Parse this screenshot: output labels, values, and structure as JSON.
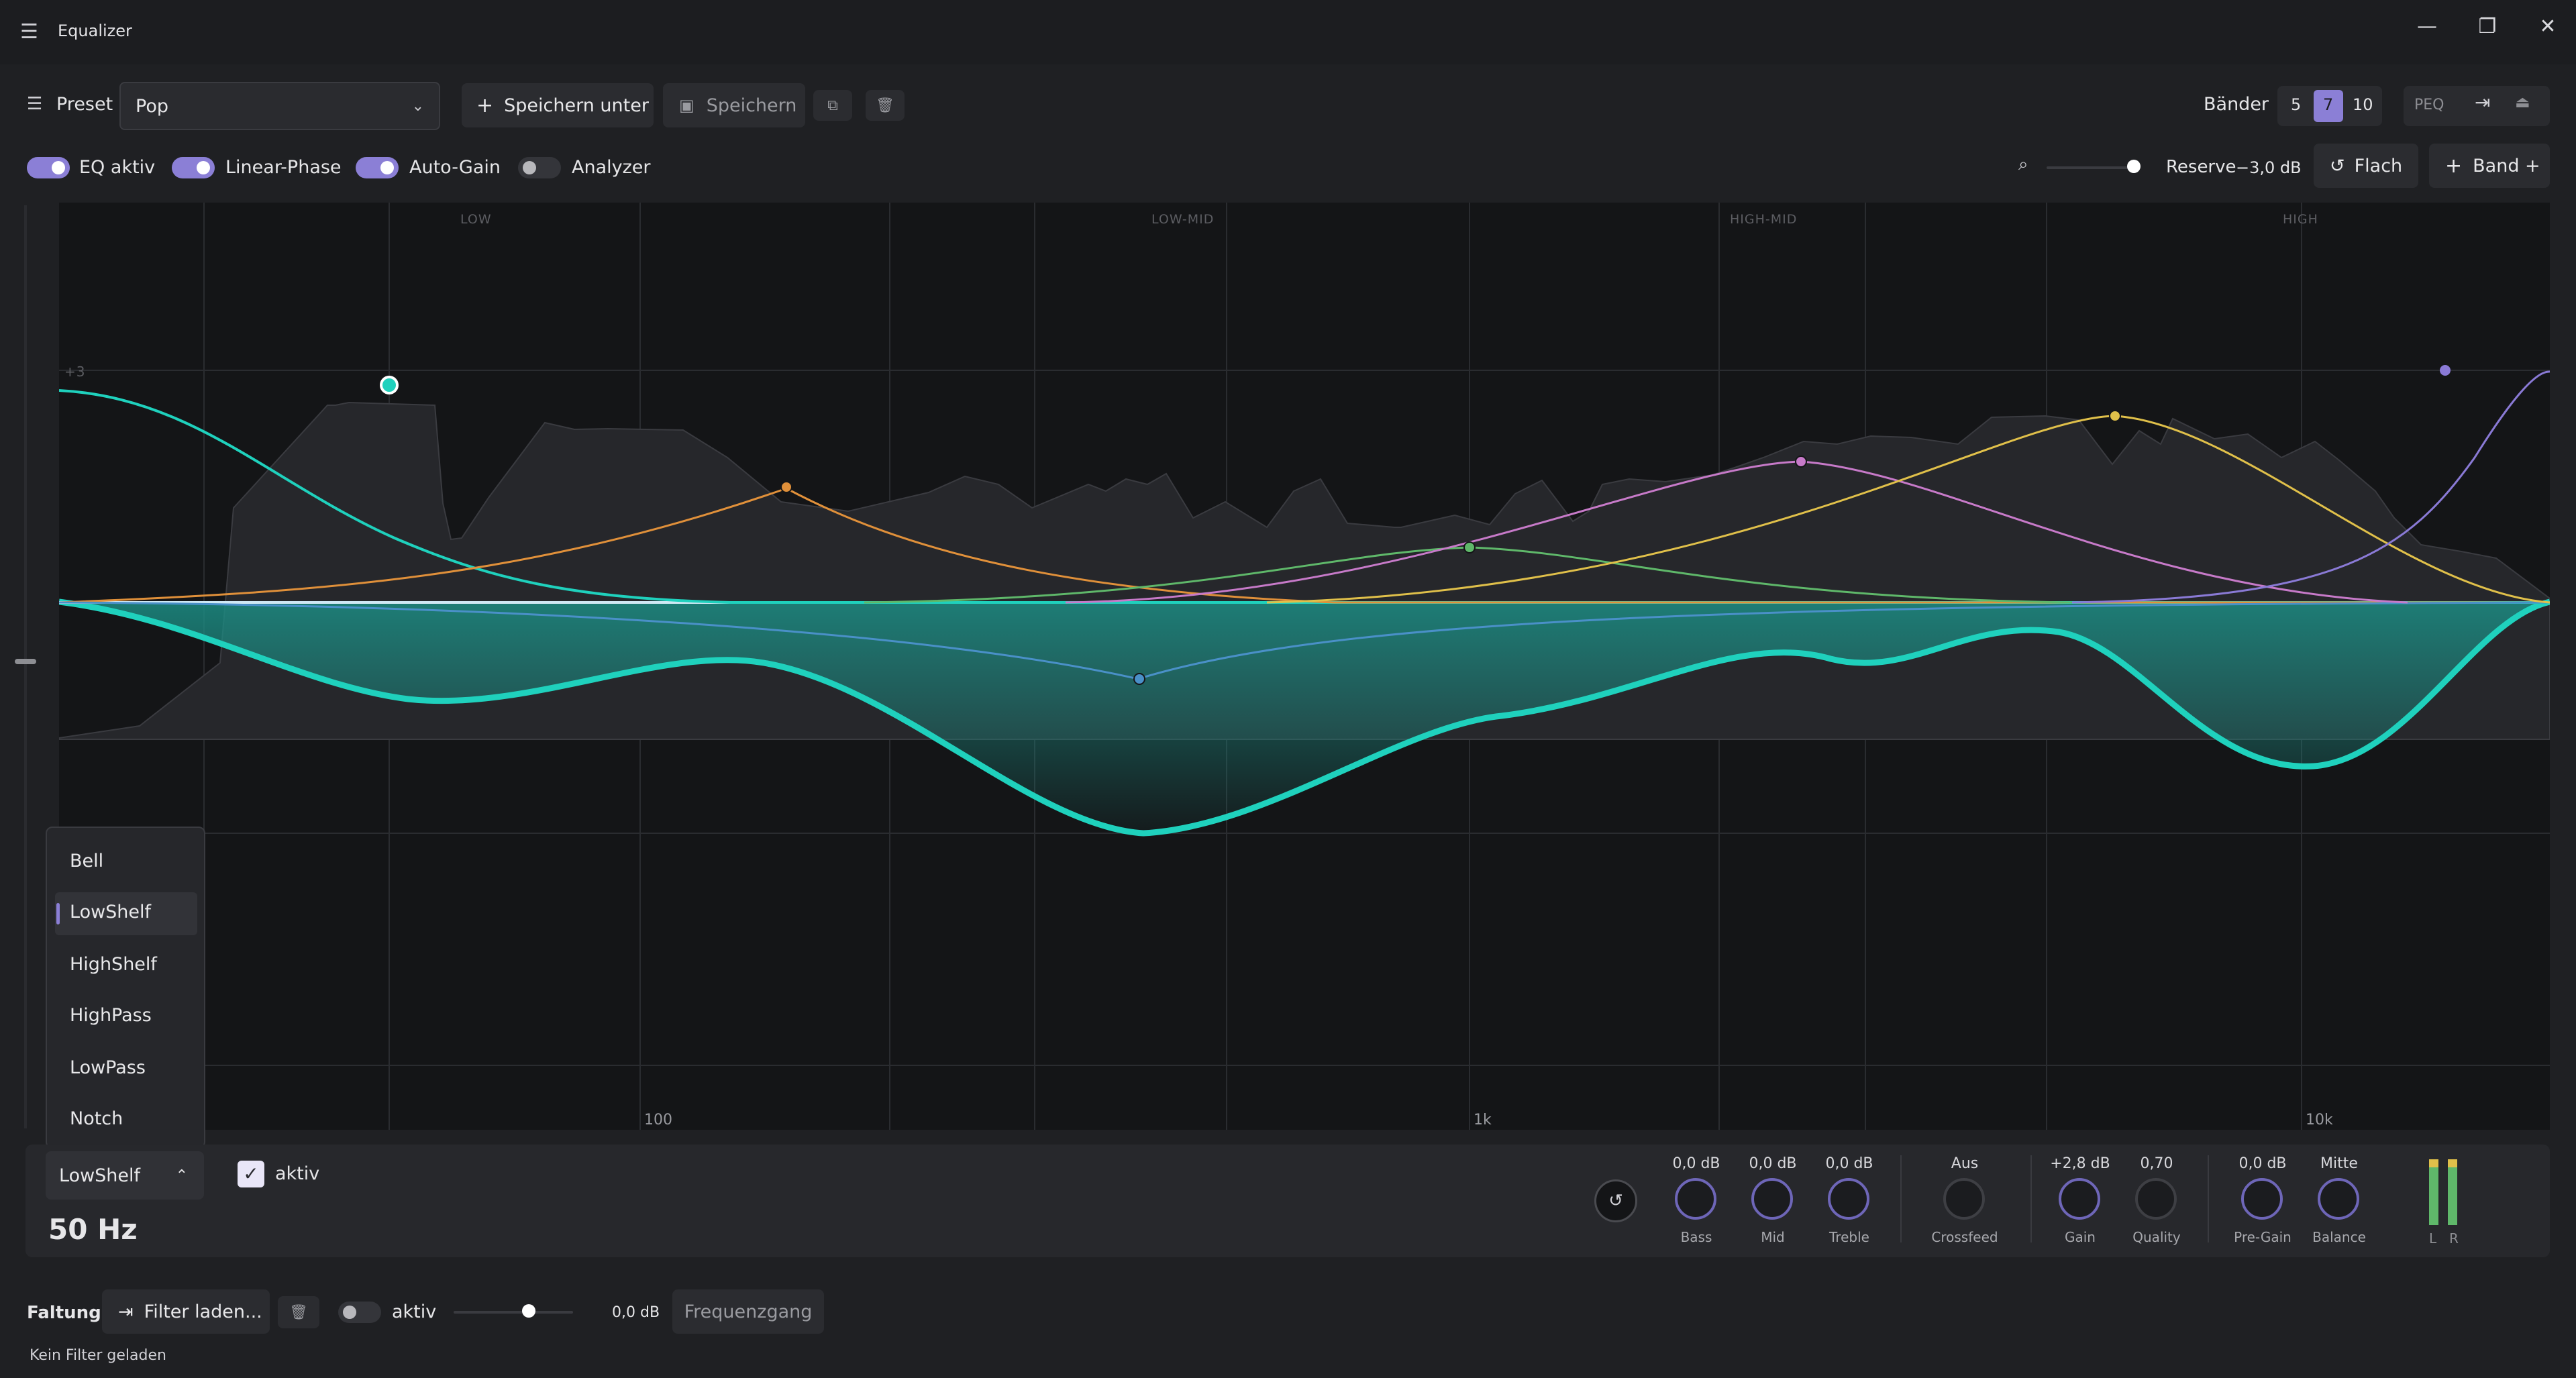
{
  "window": {
    "title": "Equalizer",
    "icon": "sliders-icon"
  },
  "toolbar": {
    "preset_label": "Preset",
    "preset_value": "Pop",
    "save_as_label": "Speichern unter",
    "save_label": "Speichern",
    "bands_label": "Bänder",
    "bands_options": [
      "5",
      "7",
      "10"
    ],
    "bands_selected": "7",
    "peq_label": "PEQ"
  },
  "toggles": {
    "eq_active": {
      "label": "EQ aktiv",
      "on": true
    },
    "linear_phase": {
      "label": "Linear-Phase",
      "on": true
    },
    "auto_gain": {
      "label": "Auto-Gain",
      "on": true
    },
    "analyzer": {
      "label": "Analyzer",
      "on": false
    }
  },
  "reserve": {
    "label": "Reserve",
    "value": "−3,0 dB"
  },
  "actions": {
    "flat_label": "Flach",
    "band_add_label": "Band +"
  },
  "graph": {
    "regions": [
      "LOW",
      "LOW-MID",
      "HIGH-MID",
      "HIGH"
    ],
    "y_marker": "+3",
    "x_ticks": [
      "100",
      "1k",
      "10k"
    ],
    "colors": {
      "accent": "#1fd1bd",
      "band1": "#e0903a",
      "band2": "#5fb86a",
      "band3": "#c77ac9",
      "band4": "#e0c04a",
      "band5": "#8a7ad6",
      "mid": "#4a90c8"
    }
  },
  "filter_menu": {
    "items": [
      "Bell",
      "LowShelf",
      "HighShelf",
      "HighPass",
      "LowPass",
      "Notch"
    ],
    "selected": "LowShelf"
  },
  "band_panel": {
    "type_value": "LowShelf",
    "active_label": "aktiv",
    "frequency": "50 Hz",
    "knobs": [
      {
        "value": "0,0 dB",
        "label": "Bass"
      },
      {
        "value": "0,0 dB",
        "label": "Mid"
      },
      {
        "value": "0,0 dB",
        "label": "Treble"
      },
      {
        "value": "Aus",
        "label": "Crossfeed"
      },
      {
        "value": "+2,8 dB",
        "label": "Gain"
      },
      {
        "value": "0,70",
        "label": "Quality"
      },
      {
        "value": "0,0 dB",
        "label": "Pre-Gain"
      },
      {
        "value": "Mitte",
        "label": "Balance"
      }
    ],
    "meter_labels": [
      "L",
      "R"
    ]
  },
  "convolution": {
    "title": "Faltung",
    "load_label": "Filter laden...",
    "active_label": "aktiv",
    "gain_value": "0,0 dB",
    "response_label": "Frequenzgang",
    "status": "Kein Filter geladen"
  }
}
